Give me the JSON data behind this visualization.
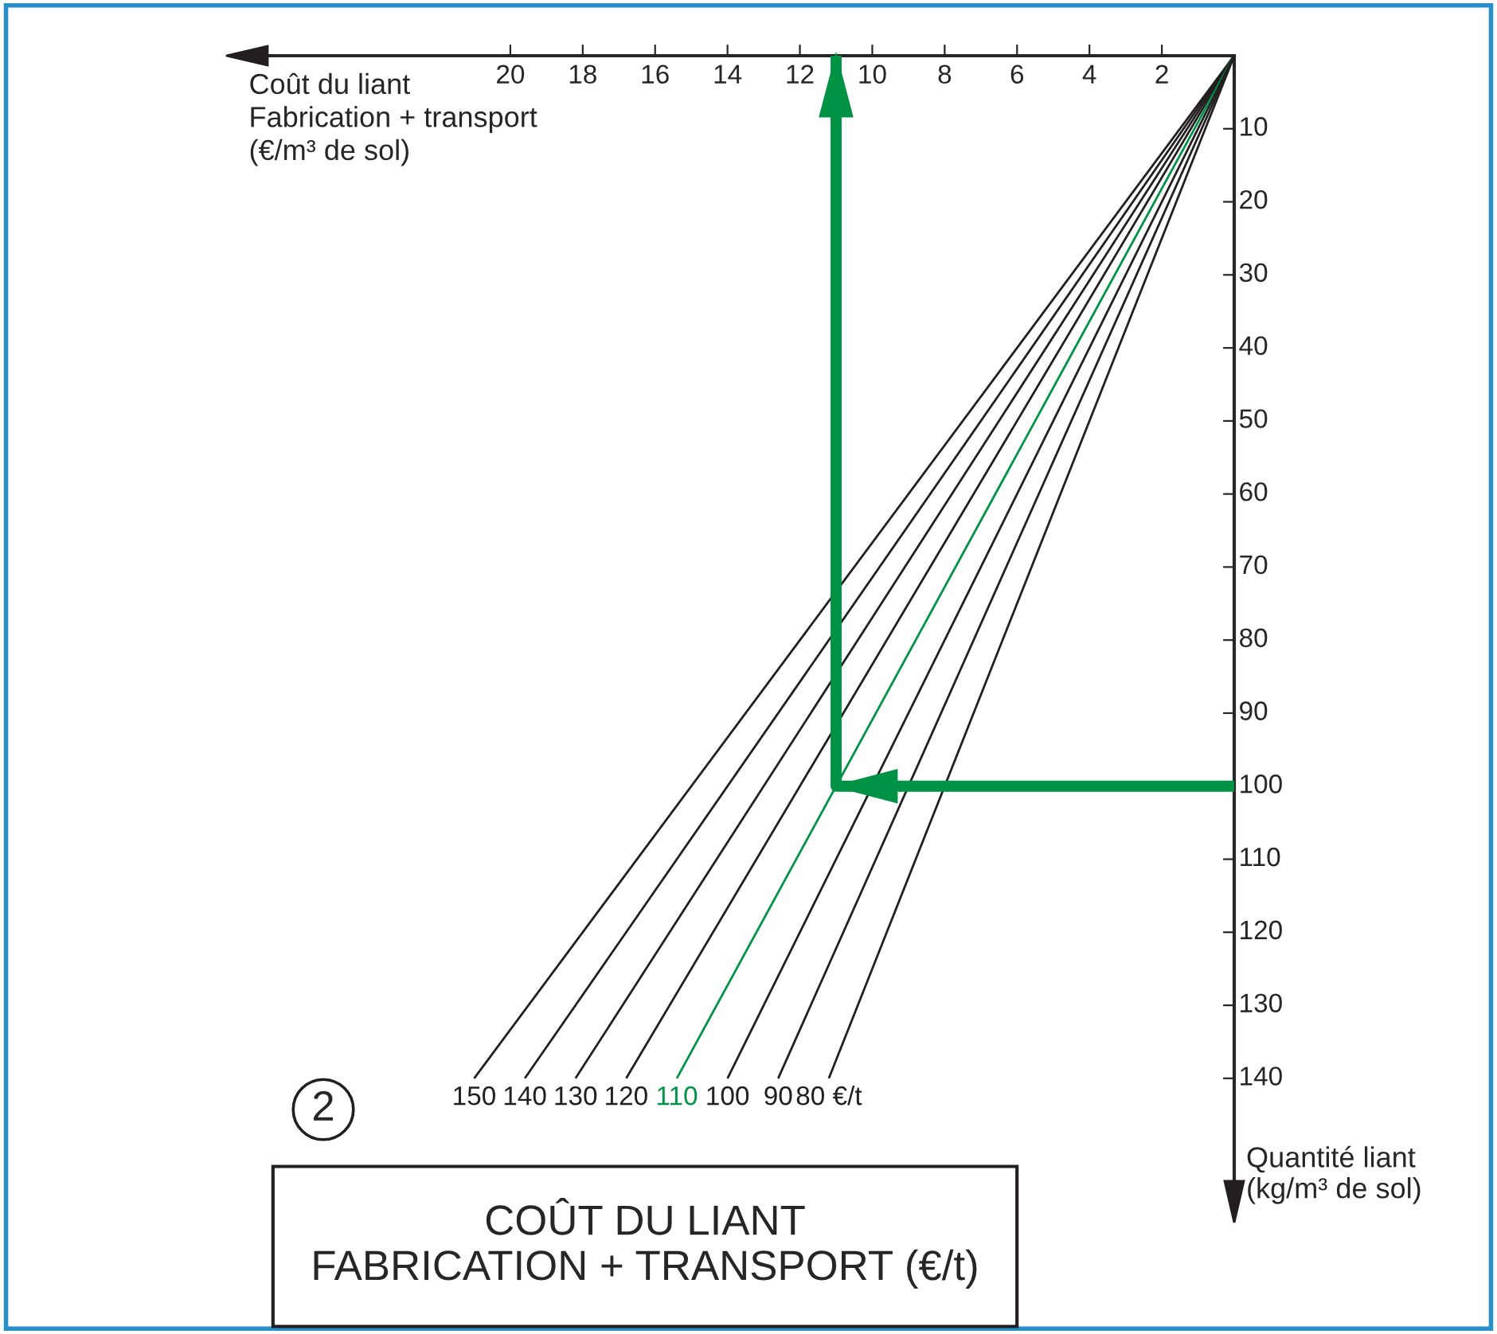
{
  "chart_data": {
    "type": "line",
    "title": "COÛT DU LIANT\nFABRICATION + TRANSPORT (€/t)",
    "xlabel": "Coût du liant\nFabrication + transport\n(€/m³ de sol)",
    "ylabel": "Quantité liant\n(kg/m³ de sol)",
    "annotations": [
      "2"
    ],
    "series": [
      {
        "name": "150",
        "color": "#231f20",
        "x": [
          0,
          21
        ],
        "values": [
          0,
          140
        ]
      },
      {
        "name": "140",
        "color": "#231f20",
        "x": [
          0,
          19.6
        ],
        "values": [
          0,
          140
        ]
      },
      {
        "name": "130",
        "color": "#231f20",
        "x": [
          0,
          18.2
        ],
        "values": [
          0,
          140
        ]
      },
      {
        "name": "120",
        "color": "#231f20",
        "x": [
          0,
          16.8
        ],
        "values": [
          0,
          140
        ]
      },
      {
        "name": "110",
        "color": "#009245",
        "x": [
          0,
          15.4
        ],
        "values": [
          0,
          140
        ]
      },
      {
        "name": "100",
        "color": "#231f20",
        "x": [
          0,
          14
        ],
        "values": [
          0,
          140
        ]
      },
      {
        "name": "90",
        "color": "#231f20",
        "x": [
          0,
          12.6
        ],
        "values": [
          0,
          140
        ]
      },
      {
        "name": "80 €/t",
        "color": "#231f20",
        "x": [
          0,
          11.2
        ],
        "values": [
          0,
          140
        ]
      },
      {
        "color": "#009245",
        "x": [
          0,
          11,
          11
        ],
        "values": [
          100,
          100,
          0
        ],
        "line_style": "solid"
      }
    ],
    "xlim": [
      27.5,
      0
    ],
    "xticks": [
      2,
      4,
      6,
      8,
      10,
      12,
      14,
      16,
      18,
      20
    ],
    "ylim": [
      158,
      0
    ],
    "yticks": [
      10,
      20,
      30,
      40,
      50,
      60,
      70,
      80,
      90,
      100,
      110,
      120,
      130,
      140
    ],
    "grid": false,
    "legend": false
  }
}
